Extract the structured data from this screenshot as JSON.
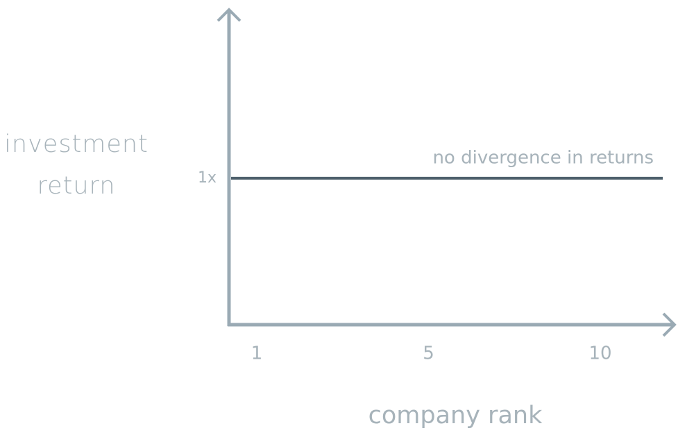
{
  "chart_data": {
    "type": "line",
    "xlabel": "company rank",
    "ylabel": "investment return",
    "categories": [
      "1",
      "5",
      "10"
    ],
    "series": [
      {
        "name": "no divergence in returns",
        "color": "#4e606c",
        "values": [
          1,
          1,
          1
        ]
      }
    ],
    "ylim": [
      0,
      2.15
    ],
    "yticks": [
      {
        "value": 1,
        "label": "1x"
      }
    ],
    "axis_color": "#9aaab4",
    "grid": false
  }
}
